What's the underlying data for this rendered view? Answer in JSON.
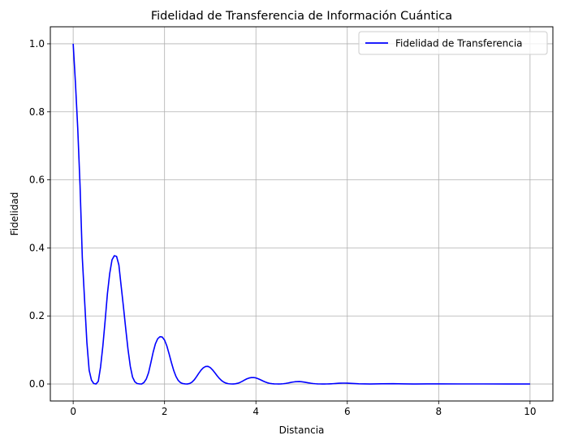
{
  "chart_data": {
    "type": "line",
    "title": "Fidelidad de Transferencia de Información Cuántica",
    "xlabel": "Distancia",
    "ylabel": "Fidelidad",
    "xlim": [
      -0.5,
      10.5
    ],
    "ylim": [
      -0.05,
      1.05
    ],
    "xticks": [
      0,
      2,
      4,
      6,
      8,
      10
    ],
    "yticks": [
      0.0,
      0.2,
      0.4,
      0.6,
      0.8,
      1.0
    ],
    "xtick_labels": [
      "0",
      "2",
      "4",
      "6",
      "8",
      "10"
    ],
    "ytick_labels": [
      "0.0",
      "0.2",
      "0.4",
      "0.6",
      "0.8",
      "1.0"
    ],
    "grid": true,
    "legend_position": "top-right",
    "series": [
      {
        "name": "Fidelidad de Transferencia",
        "color": "#0000ff",
        "x": [
          0,
          0.05,
          0.1,
          0.15,
          0.2,
          0.25,
          0.3,
          0.35,
          0.4,
          0.45,
          0.5,
          0.55,
          0.6,
          0.65,
          0.7,
          0.75,
          0.8,
          0.85,
          0.9,
          0.95,
          1.0,
          1.05,
          1.1,
          1.15,
          1.2,
          1.25,
          1.3,
          1.35,
          1.4,
          1.45,
          1.5,
          1.55,
          1.6,
          1.65,
          1.7,
          1.75,
          1.8,
          1.85,
          1.9,
          1.95,
          2.0,
          2.05,
          2.1,
          2.15,
          2.2,
          2.25,
          2.3,
          2.35,
          2.4,
          2.45,
          2.5,
          2.55,
          2.6,
          2.65,
          2.7,
          2.75,
          2.8,
          2.85,
          2.9,
          2.95,
          3.0,
          3.05,
          3.1,
          3.15,
          3.2,
          3.25,
          3.3,
          3.35,
          3.4,
          3.45,
          3.5,
          3.55,
          3.6,
          3.65,
          3.7,
          3.75,
          3.8,
          3.85,
          3.9,
          3.95,
          4.0,
          4.05,
          4.1,
          4.15,
          4.2,
          4.25,
          4.3,
          4.35,
          4.4,
          4.45,
          4.5,
          4.55,
          4.6,
          4.65,
          4.7,
          4.75,
          4.8,
          4.85,
          4.9,
          4.95,
          5.0,
          5.05,
          5.1,
          5.15,
          5.2,
          5.25,
          5.3,
          5.35,
          5.4,
          5.45,
          5.5,
          5.55,
          5.6,
          5.65,
          5.7,
          5.75,
          5.8,
          5.85,
          5.9,
          5.95,
          6.0,
          6.25,
          6.5,
          6.75,
          7.0,
          7.25,
          7.5,
          7.75,
          8.0,
          8.5,
          9.0,
          9.5,
          10.0
        ],
        "y": [
          1.0,
          0.884,
          0.751,
          0.584,
          0.371,
          0.246,
          0.122,
          0.0403,
          0.0114,
          0.0013,
          0.0,
          0.0079,
          0.0506,
          0.112,
          0.187,
          0.266,
          0.325,
          0.365,
          0.377,
          0.375,
          0.35,
          0.288,
          0.227,
          0.163,
          0.102,
          0.052,
          0.02,
          0.0063,
          0.0013,
          0.0002,
          0.0,
          0.0045,
          0.0145,
          0.0332,
          0.0624,
          0.0932,
          0.118,
          0.133,
          0.139,
          0.138,
          0.129,
          0.112,
          0.0883,
          0.063,
          0.0399,
          0.0222,
          0.0103,
          0.0039,
          0.0011,
          0.0002,
          0.0,
          0.0015,
          0.0053,
          0.0121,
          0.0214,
          0.0315,
          0.0408,
          0.0477,
          0.0515,
          0.0518,
          0.0482,
          0.0415,
          0.0331,
          0.0243,
          0.0163,
          0.0098,
          0.0052,
          0.0023,
          0.0007,
          0.0001,
          0.0,
          0.0006,
          0.002,
          0.0044,
          0.0078,
          0.0115,
          0.015,
          0.0175,
          0.0188,
          0.0189,
          0.0178,
          0.0154,
          0.0123,
          0.009,
          0.006,
          0.0036,
          0.0019,
          0.0008,
          0.0003,
          0.0001,
          0.0,
          0.0002,
          0.0007,
          0.0016,
          0.0028,
          0.0042,
          0.0055,
          0.0064,
          0.0069,
          0.007,
          0.0065,
          0.0057,
          0.0045,
          0.0033,
          0.0022,
          0.0013,
          0.0007,
          0.0003,
          0.0001,
          0.0,
          0.0,
          0.0001,
          0.0003,
          0.0006,
          0.001,
          0.0015,
          0.002,
          0.0023,
          0.0025,
          0.0025,
          0.0024,
          0.0005,
          0.0,
          0.0006,
          0.0009,
          0.0002,
          0.0,
          0.0003,
          0.0003,
          0.0001,
          0.0001,
          0.0,
          0.0
        ]
      }
    ]
  }
}
